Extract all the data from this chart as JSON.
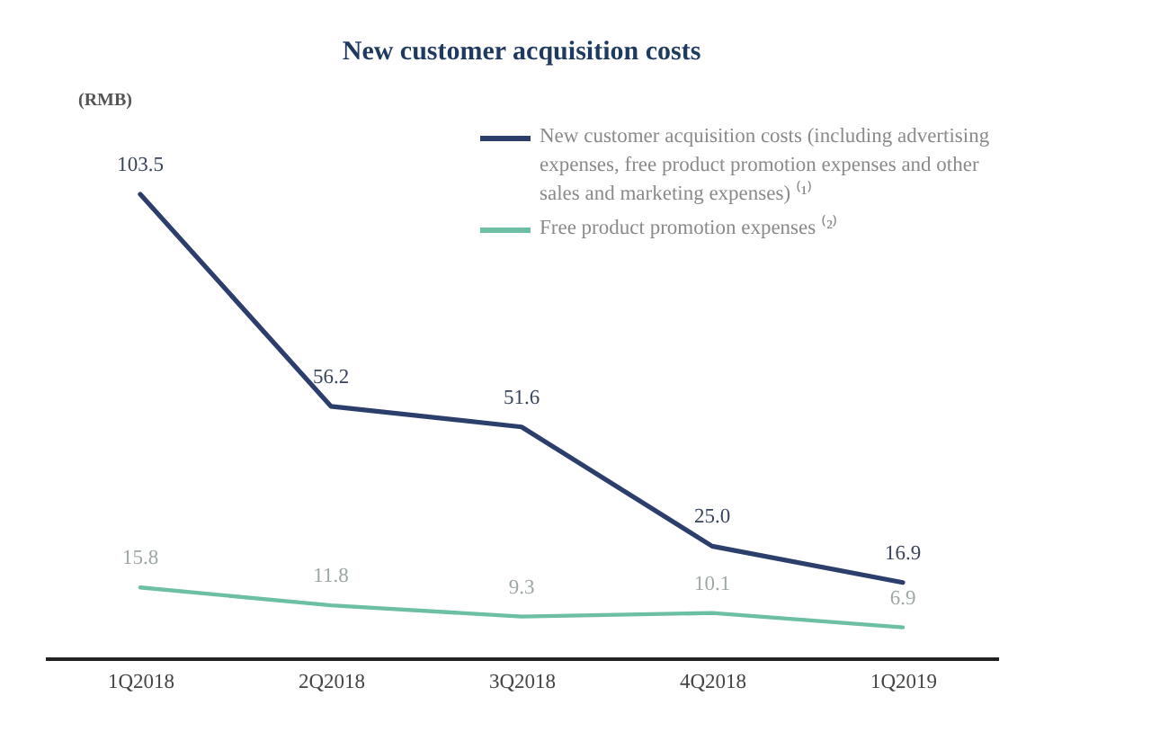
{
  "chart_data": {
    "type": "line",
    "title": "New customer acquisition costs",
    "ylabel": "(RMB)",
    "categories": [
      "1Q2018",
      "2Q2018",
      "3Q2018",
      "4Q2018",
      "1Q2019"
    ],
    "series": [
      {
        "name": "New customer acquisition costs (including advertising expenses, free product promotion expenses and other sales and marketing expenses) ⁽¹⁾",
        "color": "#2c3e6b",
        "values": [
          103.5,
          56.2,
          51.6,
          25.0,
          16.9
        ],
        "value_labels": [
          "103.5",
          "56.2",
          "51.6",
          "25.0",
          "16.9"
        ]
      },
      {
        "name": "Free product promotion expenses ⁽²⁾",
        "color": "#6cbfa3",
        "values": [
          15.8,
          11.8,
          9.3,
          10.1,
          6.9
        ],
        "value_labels": [
          "15.8",
          "11.8",
          "9.3",
          "10.1",
          "6.9"
        ]
      }
    ],
    "legend": "top right",
    "tick_labels": "x",
    "line_style": "solid"
  }
}
